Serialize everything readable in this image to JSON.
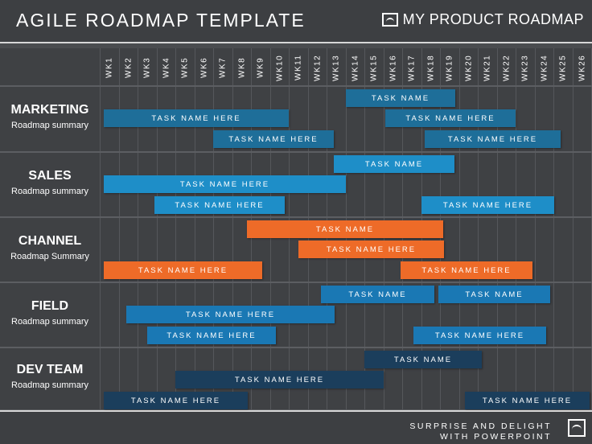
{
  "header": {
    "title": "AGILE ROADMAP TEMPLATE",
    "logo_text": "MY PRODUCT ROADMAP"
  },
  "weeks": [
    "WK1",
    "WK2",
    "WK3",
    "WK4",
    "WK5",
    "WK6",
    "WK7",
    "WK8",
    "WK9",
    "WK10",
    "WK11",
    "WK12",
    "WK13",
    "WK14",
    "WK15",
    "WK16",
    "WK17",
    "WK18",
    "WK19",
    "WK20",
    "WK21",
    "WK22",
    "WK23",
    "WK24",
    "WK25",
    "WK26"
  ],
  "rows": [
    {
      "name": "MARKETING",
      "subtitle": "Roadmap summary",
      "color": "#1e6e99"
    },
    {
      "name": "SALES",
      "subtitle": "Roadmap summary",
      "color": "#1e8ec8"
    },
    {
      "name": "CHANNEL",
      "subtitle": "Roadmap Summary",
      "color": "#ee6b28"
    },
    {
      "name": "FIELD",
      "subtitle": "Roadmap summary",
      "color": "#1a78b4"
    },
    {
      "name": "DEV TEAM",
      "subtitle": "Roadmap summary",
      "color": "#1b3e5c"
    }
  ],
  "tasks": [
    {
      "row": 0,
      "lane": 0,
      "start_week": 13.0,
      "end_week": 18.8,
      "label": "TASK NAME"
    },
    {
      "row": 0,
      "lane": 1,
      "start_week": 0.2,
      "end_week": 10.0,
      "label": "TASK NAME HERE"
    },
    {
      "row": 0,
      "lane": 1,
      "start_week": 15.1,
      "end_week": 22.0,
      "label": "TASK NAME HERE"
    },
    {
      "row": 0,
      "lane": 2,
      "start_week": 6.0,
      "end_week": 12.4,
      "label": "TASK NAME HERE"
    },
    {
      "row": 0,
      "lane": 2,
      "start_week": 17.2,
      "end_week": 24.4,
      "label": "TASK NAME HERE"
    },
    {
      "row": 1,
      "lane": 0,
      "start_week": 12.4,
      "end_week": 18.8,
      "label": "TASK NAME"
    },
    {
      "row": 1,
      "lane": 1,
      "start_week": 0.2,
      "end_week": 13.0,
      "label": "TASK NAME HERE"
    },
    {
      "row": 1,
      "lane": 2,
      "start_week": 2.9,
      "end_week": 9.8,
      "label": "TASK NAME HERE"
    },
    {
      "row": 1,
      "lane": 2,
      "start_week": 17.0,
      "end_week": 24.0,
      "label": "TASK NAME HERE"
    },
    {
      "row": 2,
      "lane": 0,
      "start_week": 7.8,
      "end_week": 18.2,
      "label": "TASK NAME"
    },
    {
      "row": 2,
      "lane": 1,
      "start_week": 10.5,
      "end_week": 18.2,
      "label": "TASK NAME HERE"
    },
    {
      "row": 2,
      "lane": 2,
      "start_week": 0.2,
      "end_week": 8.6,
      "label": "TASK NAME HERE"
    },
    {
      "row": 2,
      "lane": 2,
      "start_week": 15.9,
      "end_week": 22.9,
      "label": "TASK NAME HERE"
    },
    {
      "row": 3,
      "lane": 0,
      "start_week": 11.7,
      "end_week": 17.7,
      "label": "TASK NAME"
    },
    {
      "row": 3,
      "lane": 0,
      "start_week": 17.9,
      "end_week": 23.8,
      "label": "TASK NAME"
    },
    {
      "row": 3,
      "lane": 1,
      "start_week": 1.4,
      "end_week": 12.4,
      "label": "TASK NAME HERE"
    },
    {
      "row": 3,
      "lane": 2,
      "start_week": 2.5,
      "end_week": 9.3,
      "label": "TASK NAME HERE"
    },
    {
      "row": 3,
      "lane": 2,
      "start_week": 16.6,
      "end_week": 23.6,
      "label": "TASK NAME HERE"
    },
    {
      "row": 4,
      "lane": 0,
      "start_week": 14.0,
      "end_week": 20.2,
      "label": "TASK NAME"
    },
    {
      "row": 4,
      "lane": 1,
      "start_week": 4.0,
      "end_week": 15.0,
      "label": "TASK NAME HERE"
    },
    {
      "row": 4,
      "lane": 2,
      "start_week": 0.2,
      "end_week": 7.8,
      "label": "TASK NAME HERE"
    },
    {
      "row": 4,
      "lane": 2,
      "start_week": 19.3,
      "end_week": 25.9,
      "label": "TASK NAME HERE"
    }
  ],
  "footer": {
    "line1": "SURPRISE AND DELIGHT",
    "line2": "WITH POWERPOINT"
  }
}
